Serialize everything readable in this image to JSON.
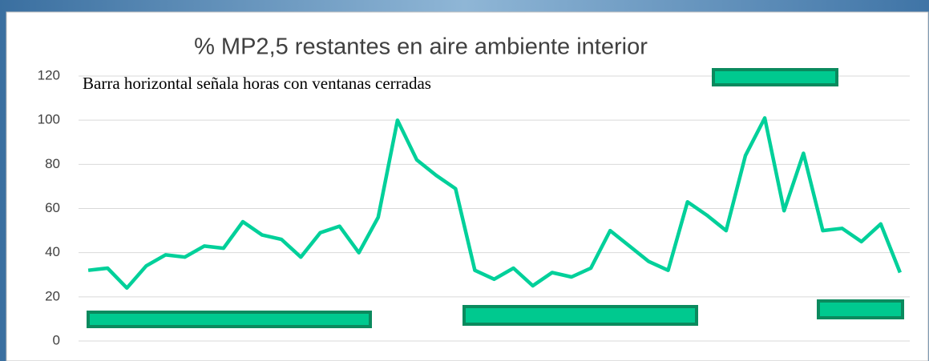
{
  "chart_data": {
    "type": "line",
    "title": "% MP2,5 restantes en aire ambiente interior",
    "annotation": "Barra horizontal señala horas con ventanas cerradas",
    "categories": [
      null,
      null,
      null,
      null,
      null,
      null,
      null,
      null,
      null,
      null,
      null,
      null,
      null,
      null,
      null,
      null,
      null,
      null,
      null,
      null,
      null,
      null,
      null,
      null,
      null,
      null,
      null,
      null,
      null,
      null,
      null,
      null,
      null,
      null,
      null,
      null,
      null,
      null,
      null,
      null,
      null,
      null,
      null
    ],
    "values": [
      32,
      33,
      24,
      34,
      39,
      38,
      43,
      42,
      54,
      48,
      46,
      38,
      49,
      52,
      40,
      56,
      100,
      82,
      75,
      69,
      32,
      28,
      33,
      25,
      31,
      29,
      33,
      50,
      43,
      36,
      32,
      63,
      57,
      50,
      84,
      101,
      59,
      85,
      50,
      51,
      45,
      53,
      31
    ],
    "color": "#00d09a",
    "ylim": [
      0,
      120
    ],
    "yticks": [
      0,
      20,
      40,
      60,
      80,
      100,
      120
    ],
    "grid": true
  }
}
